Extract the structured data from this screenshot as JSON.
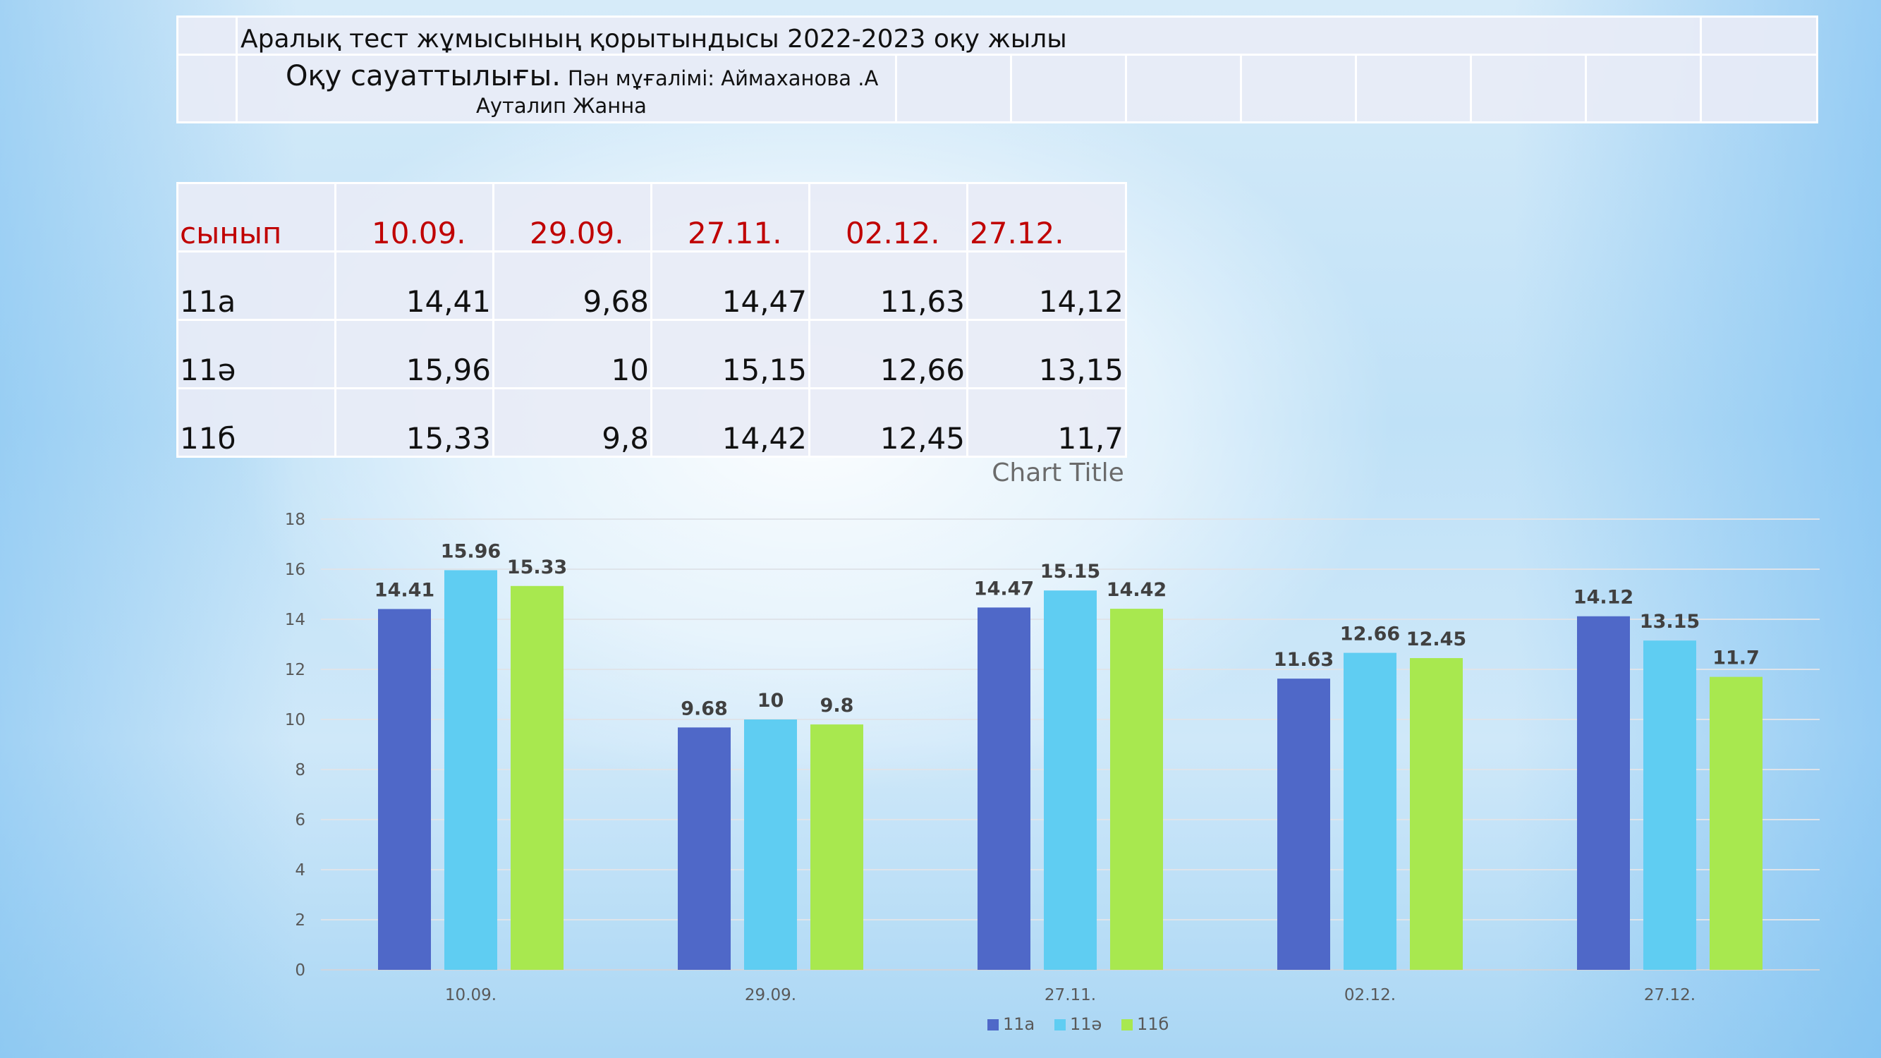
{
  "header": {
    "title": "Аралық тест жұмысының қорытындысы  2022-2023 оқу жылы",
    "subject": "Оқу сауаттылығы.",
    "teacher": "Пән мұғалімі:  Аймаханова .А",
    "student": "Ауталип  Жанна"
  },
  "table": {
    "columns": [
      "сынып",
      "10.09.",
      "29.09.",
      "27.11.",
      "02.12.",
      "27.12."
    ],
    "rows": [
      [
        "11а",
        "14,41",
        "9,68",
        "14,47",
        "11,63",
        "14,12"
      ],
      [
        "11ә",
        "15,96",
        "10",
        "15,15",
        "12,66",
        "13,15"
      ],
      [
        "11б",
        "15,33",
        "9,8",
        "14,42",
        "12,45",
        "11,7"
      ]
    ]
  },
  "chart_data": {
    "type": "bar",
    "title": "Chart Title",
    "categories": [
      "10.09.",
      "29.09.",
      "27.11.",
      "02.12.",
      "27.12."
    ],
    "series": [
      {
        "name": "11а",
        "color": "#4f68c8",
        "values": [
          14.41,
          9.68,
          14.47,
          11.63,
          14.12
        ]
      },
      {
        "name": "11ә",
        "color": "#5fcdf2",
        "values": [
          15.96,
          10,
          15.15,
          12.66,
          13.15
        ]
      },
      {
        "name": "11б",
        "color": "#a8e84f",
        "values": [
          15.33,
          9.8,
          14.42,
          12.45,
          11.7
        ]
      }
    ],
    "ylim": [
      0,
      18
    ],
    "yticks": [
      0,
      2,
      4,
      6,
      8,
      10,
      12,
      14,
      16,
      18
    ],
    "grid": true,
    "legend": "bottom"
  }
}
